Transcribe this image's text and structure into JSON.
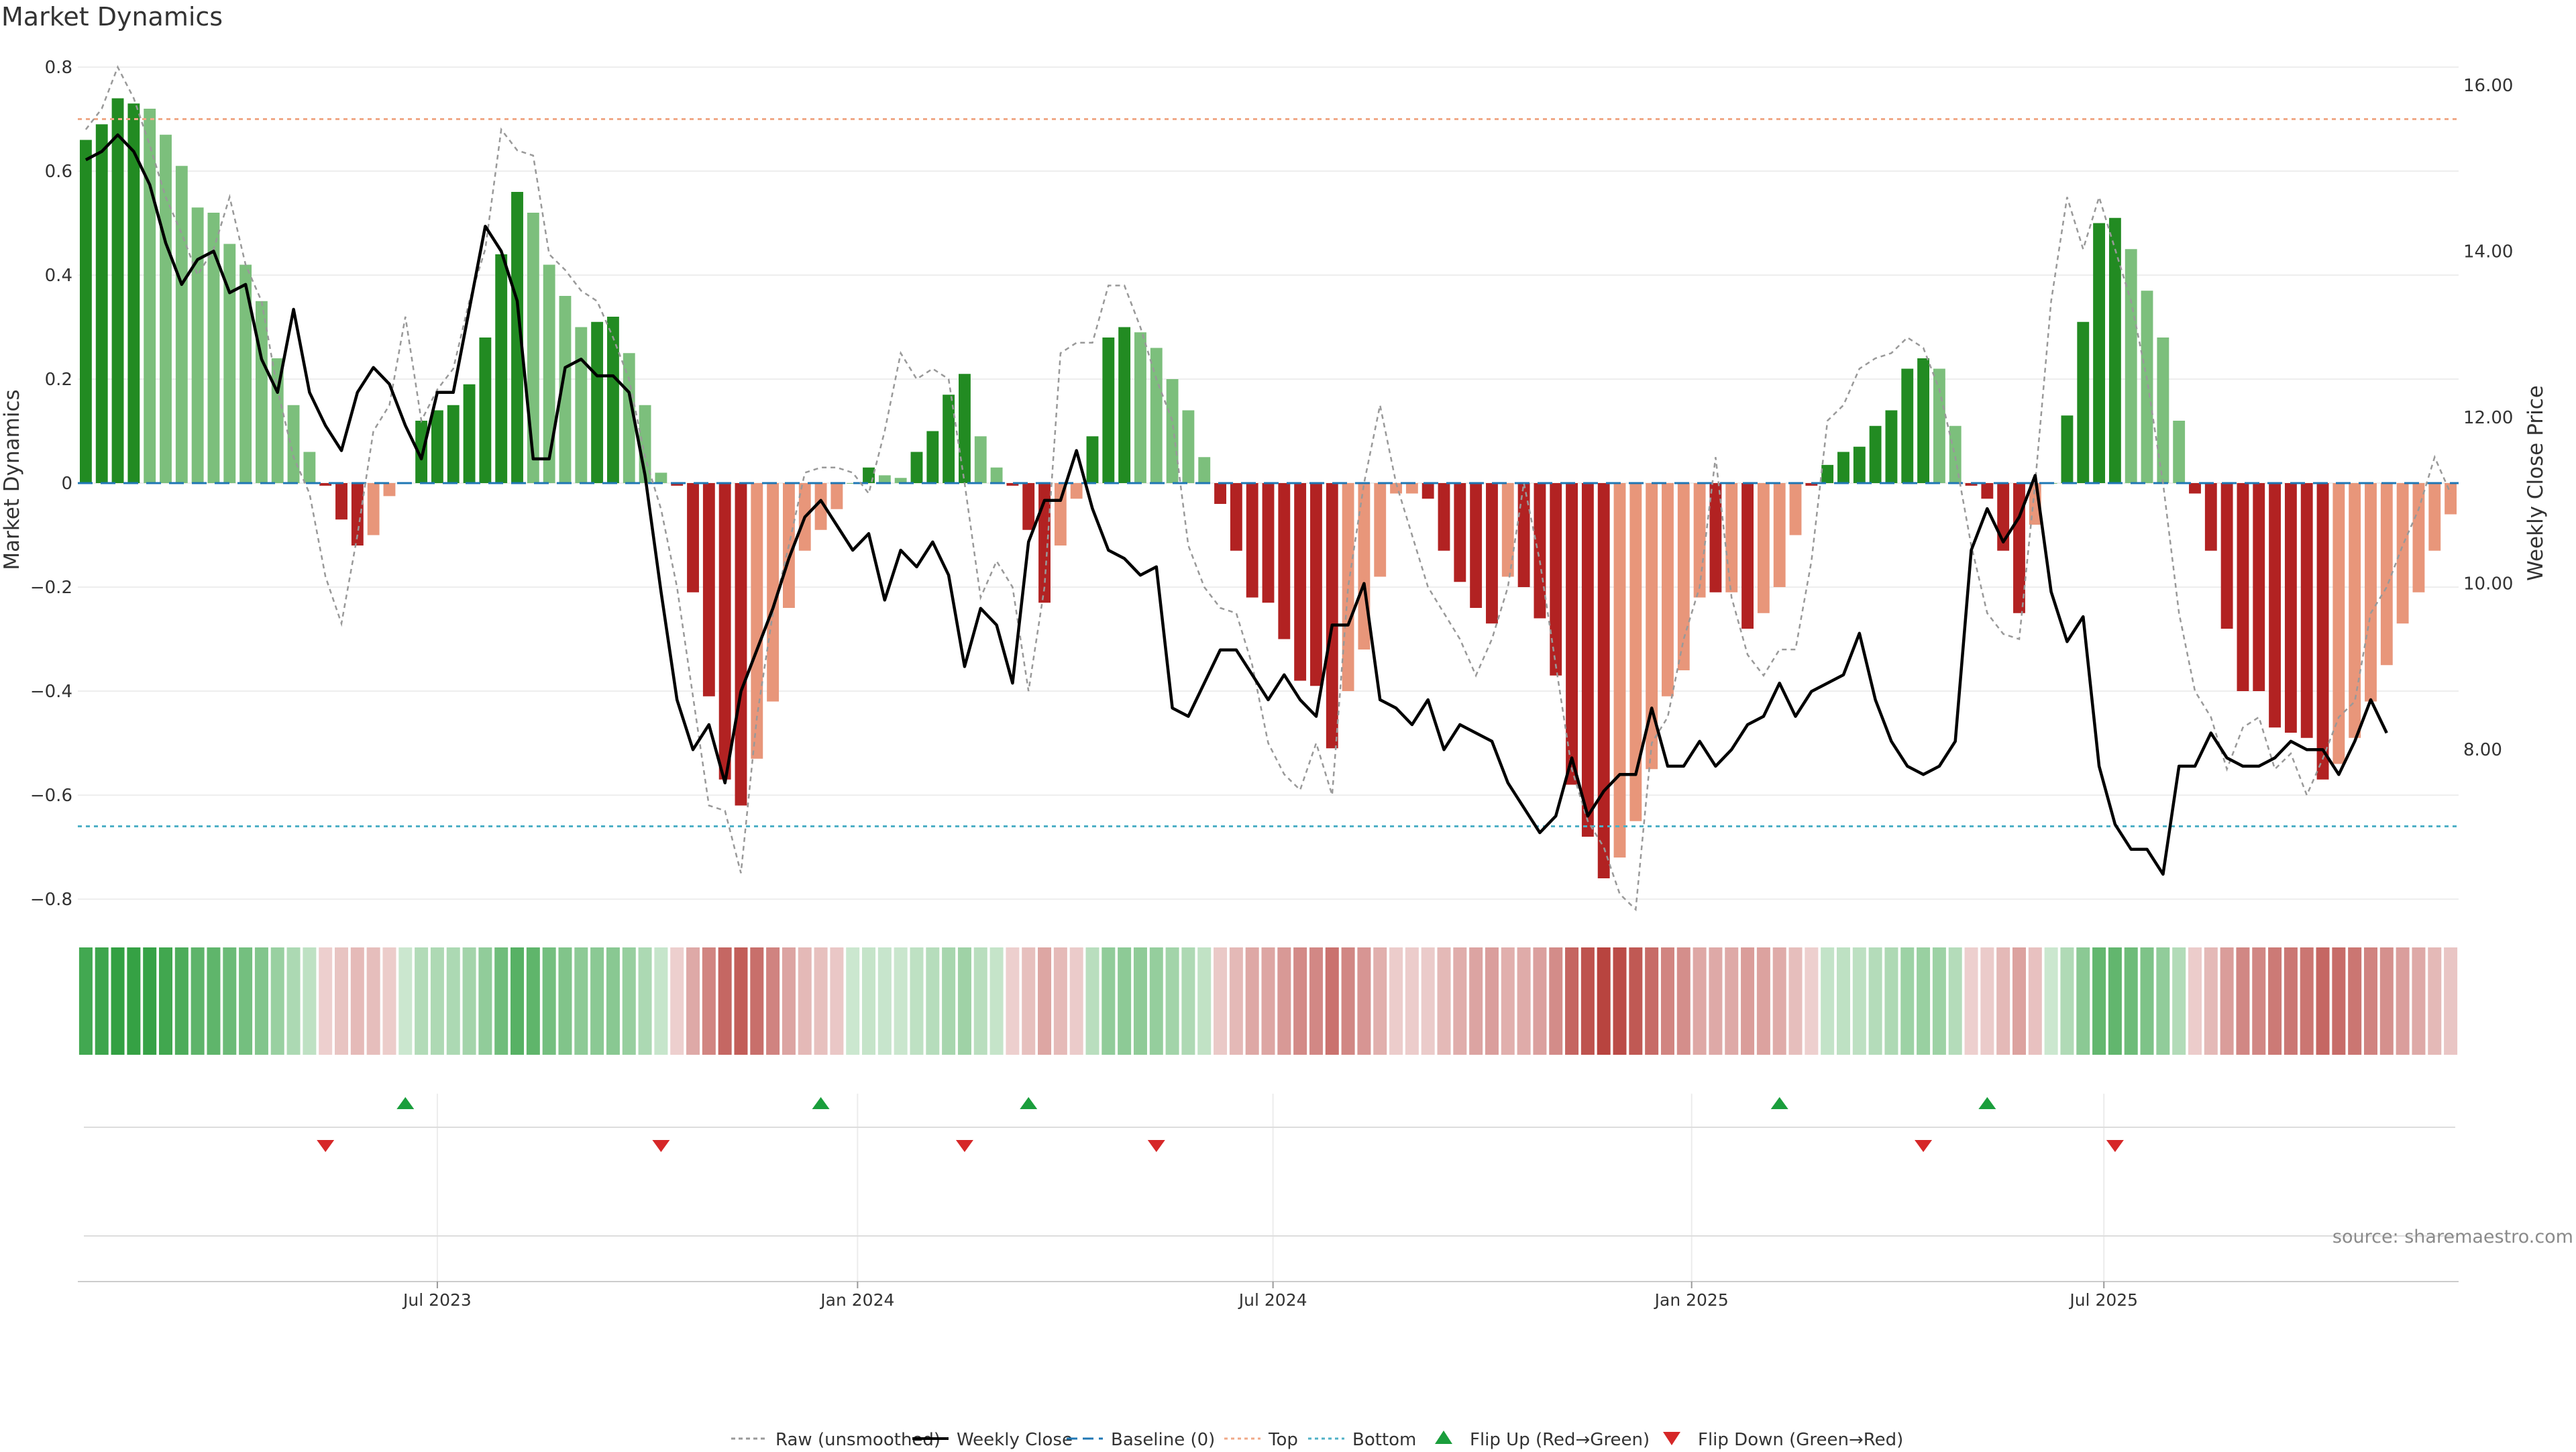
{
  "chart_data": {
    "type": "bar",
    "title": "Market Dynamics",
    "ylabel_left": "Market Dynamics",
    "ylabel_right": "Weekly Close Price",
    "ylim_left": [
      -0.8,
      0.8
    ],
    "ylim_right": [
      6.2,
      16.2
    ],
    "left_ticks": [
      "0.8",
      "0.6",
      "0.4",
      "0.2",
      "0",
      "−0.2",
      "−0.4",
      "−0.6",
      "−0.8"
    ],
    "left_tick_values": [
      0.8,
      0.6,
      0.4,
      0.2,
      0,
      -0.2,
      -0.4,
      -0.6,
      -0.8
    ],
    "right_ticks": [
      "16.00",
      "14.00",
      "12.00",
      "10.00",
      "8.00"
    ],
    "right_tick_values": [
      16,
      14,
      12,
      10,
      8
    ],
    "x_ticks": [
      {
        "label": "Jul 2023",
        "week": 22
      },
      {
        "label": "Jan 2024",
        "week": 48.3
      },
      {
        "label": "Jul 2024",
        "week": 74.3
      },
      {
        "label": "Jan 2025",
        "week": 100.5
      },
      {
        "label": "Jul 2025",
        "week": 126.3
      }
    ],
    "top_level": 0.7,
    "bottom_level": -0.66,
    "source_note": "source: sharemaestro.com",
    "colors": {
      "strong_green": "#228b22",
      "light_green": "#7cbf7c",
      "strong_red": "#b22222",
      "light_red": "#e8967a",
      "raw_line": "#999999",
      "close_line": "#000000",
      "baseline": "#1f77b4",
      "top_line": "#f0a987",
      "bottom_line": "#4fb0c6",
      "flip_up": "#1a9e3c",
      "flip_down": "#d62728"
    },
    "legend": [
      {
        "label": "Raw (unsmoothed)",
        "kind": "raw"
      },
      {
        "label": "Weekly Close",
        "kind": "close"
      },
      {
        "label": "Baseline (0)",
        "kind": "baseline"
      },
      {
        "label": "Top",
        "kind": "top"
      },
      {
        "label": "Bottom",
        "kind": "bottom"
      },
      {
        "label": "Flip Up (Red→Green)",
        "kind": "flipup"
      },
      {
        "label": "Flip Down (Green→Red)",
        "kind": "flipdown"
      }
    ],
    "bars": [
      {
        "v": 0.66,
        "s": 1
      },
      {
        "v": 0.69,
        "s": 1
      },
      {
        "v": 0.74,
        "s": 1
      },
      {
        "v": 0.73,
        "s": 1
      },
      {
        "v": 0.72,
        "s": 0
      },
      {
        "v": 0.67,
        "s": 0
      },
      {
        "v": 0.61,
        "s": 0
      },
      {
        "v": 0.53,
        "s": 0
      },
      {
        "v": 0.52,
        "s": 0
      },
      {
        "v": 0.46,
        "s": 0
      },
      {
        "v": 0.42,
        "s": 0
      },
      {
        "v": 0.35,
        "s": 0
      },
      {
        "v": 0.24,
        "s": 0
      },
      {
        "v": 0.15,
        "s": 0
      },
      {
        "v": 0.06,
        "s": 0
      },
      {
        "v": -0.005,
        "s": 1
      },
      {
        "v": -0.07,
        "s": 1
      },
      {
        "v": -0.12,
        "s": 1
      },
      {
        "v": -0.1,
        "s": 0
      },
      {
        "v": -0.025,
        "s": 0
      },
      {
        "v": 0,
        "s": 0
      },
      {
        "v": 0.12,
        "s": 1
      },
      {
        "v": 0.14,
        "s": 1
      },
      {
        "v": 0.15,
        "s": 1
      },
      {
        "v": 0.19,
        "s": 1
      },
      {
        "v": 0.28,
        "s": 1
      },
      {
        "v": 0.44,
        "s": 1
      },
      {
        "v": 0.56,
        "s": 1
      },
      {
        "v": 0.52,
        "s": 0
      },
      {
        "v": 0.42,
        "s": 0
      },
      {
        "v": 0.36,
        "s": 0
      },
      {
        "v": 0.3,
        "s": 0
      },
      {
        "v": 0.31,
        "s": 1
      },
      {
        "v": 0.32,
        "s": 1
      },
      {
        "v": 0.25,
        "s": 0
      },
      {
        "v": 0.15,
        "s": 0
      },
      {
        "v": 0.02,
        "s": 0
      },
      {
        "v": -0.005,
        "s": 1
      },
      {
        "v": -0.21,
        "s": 1
      },
      {
        "v": -0.41,
        "s": 1
      },
      {
        "v": -0.57,
        "s": 1
      },
      {
        "v": -0.62,
        "s": 1
      },
      {
        "v": -0.53,
        "s": 0
      },
      {
        "v": -0.42,
        "s": 0
      },
      {
        "v": -0.24,
        "s": 0
      },
      {
        "v": -0.13,
        "s": 0
      },
      {
        "v": -0.09,
        "s": 0
      },
      {
        "v": -0.05,
        "s": 0
      },
      {
        "v": 0,
        "s": 0
      },
      {
        "v": 0.03,
        "s": 1
      },
      {
        "v": 0.015,
        "s": 0
      },
      {
        "v": 0.01,
        "s": 0
      },
      {
        "v": 0.06,
        "s": 1
      },
      {
        "v": 0.1,
        "s": 1
      },
      {
        "v": 0.17,
        "s": 1
      },
      {
        "v": 0.21,
        "s": 1
      },
      {
        "v": 0.09,
        "s": 0
      },
      {
        "v": 0.03,
        "s": 0
      },
      {
        "v": -0.005,
        "s": 1
      },
      {
        "v": -0.09,
        "s": 1
      },
      {
        "v": -0.23,
        "s": 1
      },
      {
        "v": -0.12,
        "s": 0
      },
      {
        "v": -0.03,
        "s": 0
      },
      {
        "v": 0.09,
        "s": 1
      },
      {
        "v": 0.28,
        "s": 1
      },
      {
        "v": 0.3,
        "s": 1
      },
      {
        "v": 0.29,
        "s": 0
      },
      {
        "v": 0.26,
        "s": 0
      },
      {
        "v": 0.2,
        "s": 0
      },
      {
        "v": 0.14,
        "s": 0
      },
      {
        "v": 0.05,
        "s": 0
      },
      {
        "v": -0.04,
        "s": 1
      },
      {
        "v": -0.13,
        "s": 1
      },
      {
        "v": -0.22,
        "s": 1
      },
      {
        "v": -0.23,
        "s": 1
      },
      {
        "v": -0.3,
        "s": 1
      },
      {
        "v": -0.38,
        "s": 1
      },
      {
        "v": -0.39,
        "s": 1
      },
      {
        "v": -0.51,
        "s": 1
      },
      {
        "v": -0.4,
        "s": 0
      },
      {
        "v": -0.32,
        "s": 0
      },
      {
        "v": -0.18,
        "s": 0
      },
      {
        "v": -0.02,
        "s": 0
      },
      {
        "v": -0.02,
        "s": 0
      },
      {
        "v": -0.03,
        "s": 1
      },
      {
        "v": -0.13,
        "s": 1
      },
      {
        "v": -0.19,
        "s": 1
      },
      {
        "v": -0.24,
        "s": 1
      },
      {
        "v": -0.27,
        "s": 1
      },
      {
        "v": -0.18,
        "s": 0
      },
      {
        "v": -0.2,
        "s": 1
      },
      {
        "v": -0.26,
        "s": 1
      },
      {
        "v": -0.37,
        "s": 1
      },
      {
        "v": -0.58,
        "s": 1
      },
      {
        "v": -0.68,
        "s": 1
      },
      {
        "v": -0.76,
        "s": 1
      },
      {
        "v": -0.72,
        "s": 0
      },
      {
        "v": -0.65,
        "s": 0
      },
      {
        "v": -0.55,
        "s": 0
      },
      {
        "v": -0.41,
        "s": 0
      },
      {
        "v": -0.36,
        "s": 0
      },
      {
        "v": -0.22,
        "s": 0
      },
      {
        "v": -0.21,
        "s": 1
      },
      {
        "v": -0.21,
        "s": 0
      },
      {
        "v": -0.28,
        "s": 1
      },
      {
        "v": -0.25,
        "s": 0
      },
      {
        "v": -0.2,
        "s": 0
      },
      {
        "v": -0.1,
        "s": 0
      },
      {
        "v": -0.005,
        "s": 1
      },
      {
        "v": 0.035,
        "s": 1
      },
      {
        "v": 0.06,
        "s": 1
      },
      {
        "v": 0.07,
        "s": 1
      },
      {
        "v": 0.11,
        "s": 1
      },
      {
        "v": 0.14,
        "s": 1
      },
      {
        "v": 0.22,
        "s": 1
      },
      {
        "v": 0.24,
        "s": 1
      },
      {
        "v": 0.22,
        "s": 0
      },
      {
        "v": 0.11,
        "s": 0
      },
      {
        "v": -0.005,
        "s": 1
      },
      {
        "v": -0.03,
        "s": 1
      },
      {
        "v": -0.13,
        "s": 1
      },
      {
        "v": -0.25,
        "s": 1
      },
      {
        "v": -0.08,
        "s": 0
      },
      {
        "v": 0,
        "s": 0
      },
      {
        "v": 0.13,
        "s": 1
      },
      {
        "v": 0.31,
        "s": 1
      },
      {
        "v": 0.5,
        "s": 1
      },
      {
        "v": 0.51,
        "s": 1
      },
      {
        "v": 0.45,
        "s": 0
      },
      {
        "v": 0.37,
        "s": 0
      },
      {
        "v": 0.28,
        "s": 0
      },
      {
        "v": 0.12,
        "s": 0
      },
      {
        "v": -0.02,
        "s": 1
      },
      {
        "v": -0.13,
        "s": 1
      },
      {
        "v": -0.28,
        "s": 1
      },
      {
        "v": -0.4,
        "s": 1
      },
      {
        "v": -0.4,
        "s": 1
      },
      {
        "v": -0.47,
        "s": 1
      },
      {
        "v": -0.48,
        "s": 1
      },
      {
        "v": -0.49,
        "s": 1
      },
      {
        "v": -0.57,
        "s": 1
      },
      {
        "v": -0.54,
        "s": 0
      },
      {
        "v": -0.49,
        "s": 0
      },
      {
        "v": -0.42,
        "s": 0
      },
      {
        "v": -0.35,
        "s": 0
      },
      {
        "v": -0.27,
        "s": 0
      },
      {
        "v": -0.21,
        "s": 0
      },
      {
        "v": -0.13,
        "s": 0
      },
      {
        "v": -0.06,
        "s": 0
      }
    ],
    "raw_series": [
      0.68,
      0.72,
      0.8,
      0.74,
      0.65,
      0.55,
      0.48,
      0.4,
      0.45,
      0.55,
      0.42,
      0.35,
      0.18,
      0.05,
      -0.02,
      -0.18,
      -0.27,
      -0.1,
      0.1,
      0.15,
      0.32,
      0.12,
      0.18,
      0.22,
      0.35,
      0.45,
      0.68,
      0.64,
      0.63,
      0.44,
      0.41,
      0.37,
      0.35,
      0.28,
      0.2,
      0.05,
      -0.05,
      -0.2,
      -0.41,
      -0.62,
      -0.63,
      -0.75,
      -0.45,
      -0.25,
      -0.12,
      0.02,
      0.03,
      0.03,
      0.02,
      -0.02,
      0.1,
      0.25,
      0.2,
      0.22,
      0.2,
      0.0,
      -0.22,
      -0.15,
      -0.2,
      -0.4,
      -0.2,
      0.25,
      0.27,
      0.27,
      0.38,
      0.38,
      0.3,
      0.2,
      0.12,
      -0.12,
      -0.2,
      -0.24,
      -0.25,
      -0.35,
      -0.5,
      -0.56,
      -0.59,
      -0.5,
      -0.6,
      -0.2,
      0.0,
      0.15,
      0.0,
      -0.1,
      -0.2,
      -0.25,
      -0.3,
      -0.37,
      -0.3,
      -0.2,
      0.0,
      -0.15,
      -0.35,
      -0.55,
      -0.65,
      -0.7,
      -0.79,
      -0.82,
      -0.5,
      -0.45,
      -0.3,
      -0.2,
      0.05,
      -0.22,
      -0.33,
      -0.37,
      -0.32,
      -0.32,
      -0.15,
      0.12,
      0.15,
      0.22,
      0.24,
      0.25,
      0.28,
      0.26,
      0.18,
      0.05,
      -0.12,
      -0.25,
      -0.29,
      -0.3,
      0.0,
      0.35,
      0.55,
      0.45,
      0.55,
      0.45,
      0.35,
      0.2,
      0.0,
      -0.25,
      -0.4,
      -0.45,
      -0.55,
      -0.47,
      -0.45,
      -0.55,
      -0.52,
      -0.6,
      -0.53,
      -0.45,
      -0.42,
      -0.25,
      -0.2,
      -0.12,
      -0.05,
      0.05,
      -0.02
    ],
    "close_series": [
      15.1,
      15.2,
      15.4,
      15.2,
      14.8,
      14.1,
      13.6,
      13.9,
      14.0,
      13.5,
      13.6,
      12.7,
      12.3,
      13.3,
      12.3,
      11.9,
      11.6,
      12.3,
      12.6,
      12.4,
      11.9,
      11.5,
      12.3,
      12.3,
      13.3,
      14.3,
      14.0,
      13.4,
      11.5,
      11.5,
      12.6,
      12.7,
      12.5,
      12.5,
      12.3,
      11.3,
      9.9,
      8.6,
      8.0,
      8.3,
      7.6,
      8.7,
      9.2,
      9.7,
      10.3,
      10.8,
      11.0,
      10.7,
      10.4,
      10.6,
      9.8,
      10.4,
      10.2,
      10.5,
      10.1,
      9.0,
      9.7,
      9.5,
      8.8,
      10.5,
      11.0,
      11.0,
      11.6,
      10.9,
      10.4,
      10.3,
      10.1,
      10.2,
      8.5,
      8.4,
      8.8,
      9.2,
      9.2,
      8.9,
      8.6,
      8.9,
      8.6,
      8.4,
      9.5,
      9.5,
      10.0,
      8.6,
      8.5,
      8.3,
      8.6,
      8.0,
      8.3,
      8.2,
      8.1,
      7.6,
      7.3,
      7.0,
      7.2,
      7.9,
      7.2,
      7.5,
      7.7,
      7.7,
      8.5,
      7.8,
      7.8,
      8.1,
      7.8,
      8.0,
      8.3,
      8.4,
      8.8,
      8.4,
      8.7,
      8.8,
      8.9,
      9.4,
      8.6,
      8.1,
      7.8,
      7.7,
      7.8,
      8.1,
      10.4,
      10.9,
      10.5,
      10.8,
      11.3,
      9.9,
      9.3,
      9.6,
      7.8,
      7.1,
      6.8,
      6.8,
      6.5,
      7.8,
      7.8,
      8.2,
      7.9,
      7.8,
      7.8,
      7.9,
      8.1,
      8.0,
      8.0,
      7.7,
      8.1,
      8.6,
      8.2
    ],
    "flips_up": [
      20,
      46,
      59,
      106,
      119
    ],
    "flips_down": [
      15,
      36,
      55,
      67,
      115,
      127
    ]
  }
}
